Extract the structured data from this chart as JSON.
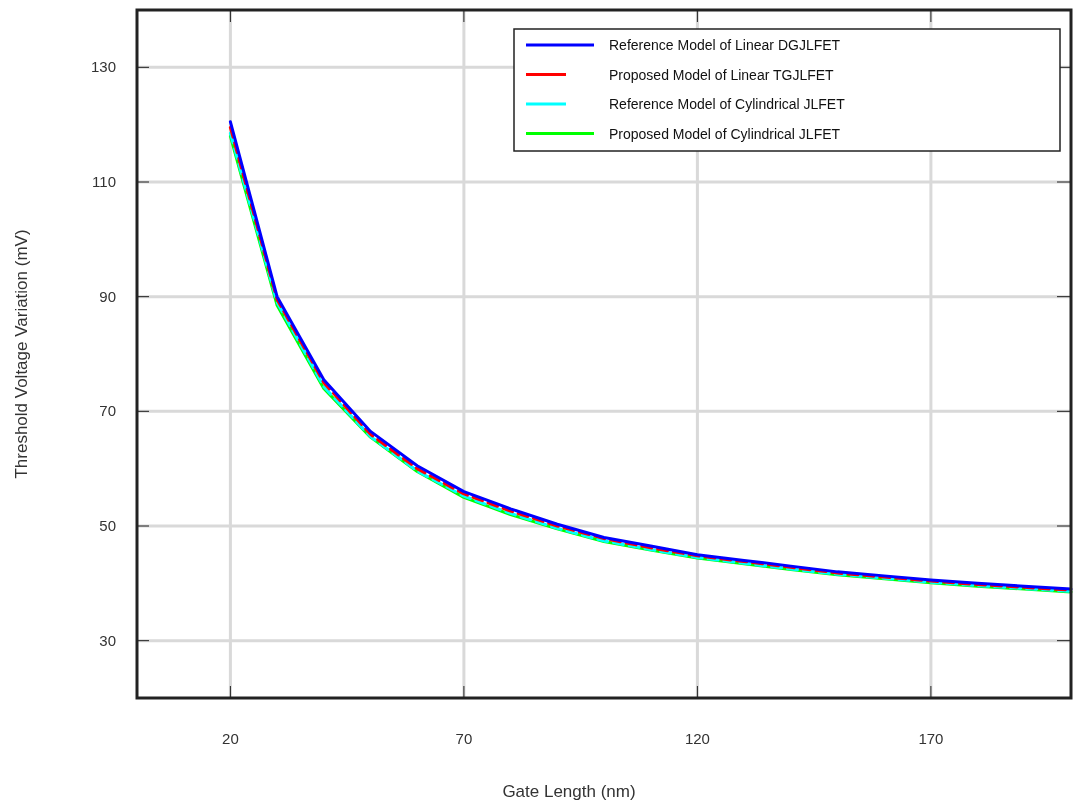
{
  "chart_data": {
    "type": "line",
    "xlabel": "Gate Length (nm)",
    "ylabel": "Threshold Voltage Variation (mV)",
    "x": [
      20,
      30,
      40,
      50,
      60,
      70,
      80,
      90,
      100,
      110,
      120,
      130,
      140,
      150,
      160,
      170,
      180,
      190,
      200
    ],
    "xlim": [
      0,
      200
    ],
    "xticks": [
      20,
      70,
      120,
      170
    ],
    "ylim": [
      20,
      140
    ],
    "yticks": [
      30,
      50,
      70,
      90,
      110,
      130
    ],
    "grid": true,
    "legend": "top right",
    "marker": "none",
    "series": [
      {
        "name": "Reference Model of Linear DGJLFET",
        "color": "#0000ff",
        "line_style": "solid",
        "values": [
          120.5,
          90,
          75.5,
          66.5,
          60.5,
          56,
          53,
          50.3,
          48,
          46.5,
          45,
          44,
          43,
          42,
          41.3,
          40.6,
          40,
          39.5,
          39
        ]
      },
      {
        "name": "Proposed Model of Linear TGJLFET",
        "color": "#ff0000",
        "line_style": "dashed",
        "values": [
          119.5,
          89.5,
          75,
          66,
          60,
          55.6,
          52.6,
          50,
          47.8,
          46.2,
          44.8,
          43.8,
          42.8,
          41.8,
          41.1,
          40.4,
          39.8,
          39.3,
          38.8
        ]
      },
      {
        "name": "Reference Model of Cylindrical JLFET",
        "color": "#00ffff",
        "line_style": "dashed",
        "values": [
          118.5,
          89,
          74.3,
          65.6,
          59.6,
          55.2,
          52.2,
          49.6,
          47.4,
          45.9,
          44.5,
          43.5,
          42.5,
          41.6,
          40.9,
          40.2,
          39.6,
          39.1,
          38.6
        ]
      },
      {
        "name": "Proposed Model of Cylindrical JLFET",
        "color": "#00ff00",
        "line_style": "solid",
        "values": [
          118,
          88.5,
          74,
          65.5,
          59.5,
          55,
          52,
          49.5,
          47.3,
          45.8,
          44.4,
          43.4,
          42.4,
          41.5,
          40.8,
          40.1,
          39.5,
          39,
          38.5
        ]
      }
    ]
  }
}
